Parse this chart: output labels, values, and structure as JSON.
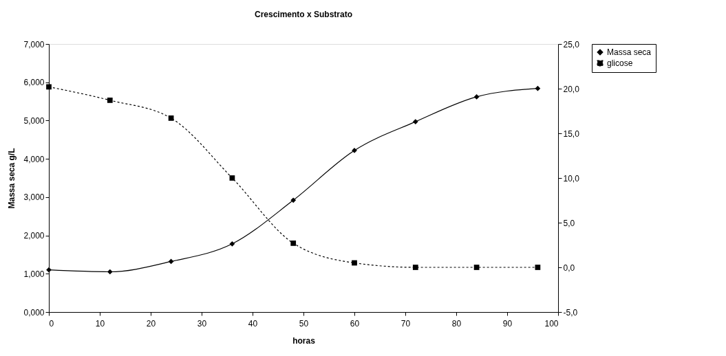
{
  "chart_data": {
    "type": "line",
    "title": "Crescimento x Substrato",
    "xlabel": "horas",
    "ylabel": "Massa seca g/L",
    "x": [
      0,
      12,
      24,
      36,
      48,
      60,
      72,
      84,
      96
    ],
    "series": [
      {
        "name": "Massa seca",
        "color": "#000000",
        "marker": "diamond",
        "line_style": "solid",
        "values": [
          1.1,
          1.05,
          1.32,
          1.78,
          2.92,
          4.22,
          4.97,
          5.62,
          5.84
        ]
      },
      {
        "name": "glicose",
        "color": "#000000",
        "marker": "square",
        "line_style": "dotted",
        "axis": "y2",
        "values": [
          20.2,
          18.7,
          16.7,
          10.0,
          2.7,
          0.5,
          0.0,
          0.0,
          0.0
        ]
      }
    ],
    "xlim": [
      0,
      100
    ],
    "xticks": [
      0,
      10,
      20,
      30,
      40,
      50,
      60,
      70,
      80,
      90,
      100
    ],
    "ylim": [
      0,
      7
    ],
    "yticks": [
      {
        "value": 0,
        "label": "0,000"
      },
      {
        "value": 1,
        "label": "1,000"
      },
      {
        "value": 2,
        "label": "2,000"
      },
      {
        "value": 3,
        "label": "3,000"
      },
      {
        "value": 4,
        "label": "4,000"
      },
      {
        "value": 5,
        "label": "5,000"
      },
      {
        "value": 6,
        "label": "6,000"
      },
      {
        "value": 7,
        "label": "7,000"
      }
    ],
    "y2lim": [
      -5,
      25
    ],
    "y2ticks": [
      {
        "value": -5,
        "label": "-5,0"
      },
      {
        "value": 0,
        "label": "0,0"
      },
      {
        "value": 5,
        "label": "5,0"
      },
      {
        "value": 10,
        "label": "10,0"
      },
      {
        "value": 15,
        "label": "15,0"
      },
      {
        "value": 20,
        "label": "20,0"
      },
      {
        "value": 25,
        "label": "25,0"
      }
    ],
    "grid": false,
    "legend": "right"
  }
}
